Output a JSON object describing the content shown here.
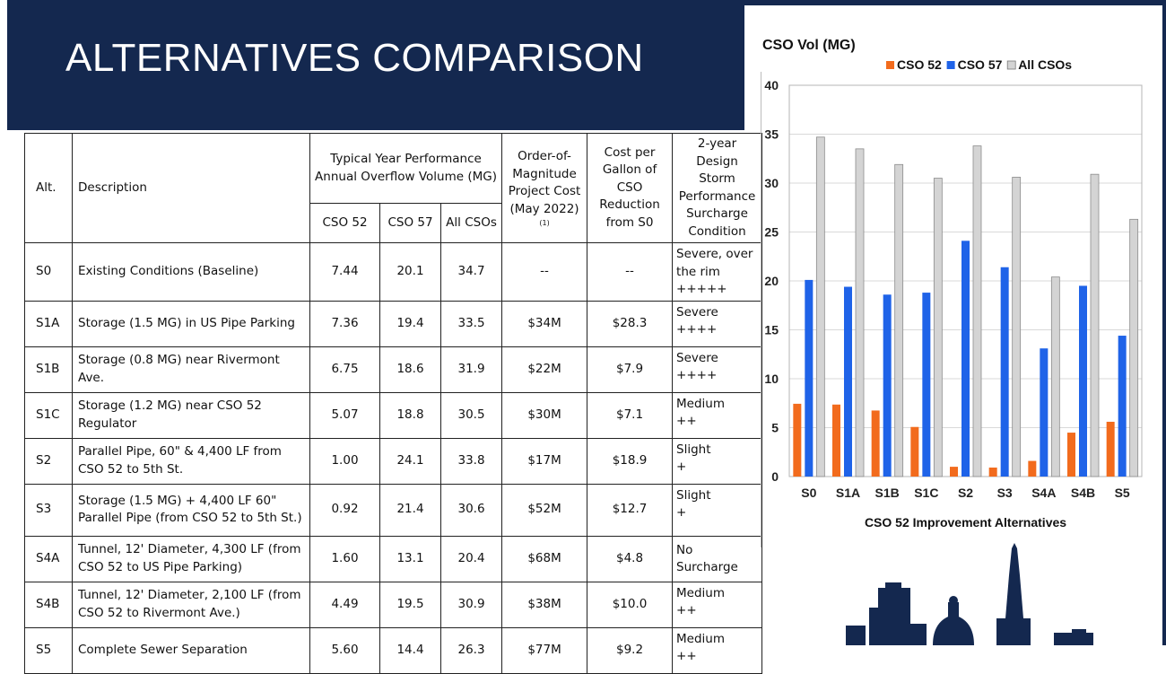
{
  "slide": {
    "title": "ALTERNATIVES COMPARISON"
  },
  "table": {
    "headers": {
      "alt": "Alt.",
      "description": "Description",
      "typical_year": "Typical Year Performance Annual Overflow Volume (MG)",
      "cso52": "CSO 52",
      "cso57": "CSO 57",
      "all_csos": "All CSOs",
      "cost": "Order-of-Magnitude Project Cost (May 2022)",
      "cost_note": "(1)",
      "cost_per_gallon": "Cost per Gallon of CSO Reduction from S0",
      "storm": "2-year Design Storm Performance Surcharge Condition"
    },
    "rows": [
      {
        "alt": "S0",
        "description": "Existing Conditions (Baseline)",
        "cso52": "7.44",
        "cso57": "20.1",
        "all": "34.7",
        "cost": "--",
        "cpg": "--",
        "storm": "Severe, over the rim",
        "storm_marks": "+++++"
      },
      {
        "alt": "S1A",
        "description": "Storage (1.5 MG) in US Pipe Parking",
        "cso52": "7.36",
        "cso57": "19.4",
        "all": "33.5",
        "cost": "$34M",
        "cpg": "$28.3",
        "storm": "Severe",
        "storm_marks": "++++"
      },
      {
        "alt": "S1B",
        "description": "Storage (0.8 MG) near Rivermont Ave.",
        "cso52": "6.75",
        "cso57": "18.6",
        "all": "31.9",
        "cost": "$22M",
        "cpg": "$7.9",
        "storm": "Severe",
        "storm_marks": "++++"
      },
      {
        "alt": "S1C",
        "description": "Storage (1.2 MG) near CSO 52 Regulator",
        "cso52": "5.07",
        "cso57": "18.8",
        "all": "30.5",
        "cost": "$30M",
        "cpg": "$7.1",
        "storm": "Medium",
        "storm_marks": "++"
      },
      {
        "alt": "S2",
        "description": "Parallel Pipe, 60\" & 4,400 LF from CSO 52 to 5th St.",
        "cso52": "1.00",
        "cso57": "24.1",
        "all": "33.8",
        "cost": "$17M",
        "cpg": "$18.9",
        "storm": "Slight",
        "storm_marks": "+"
      },
      {
        "alt": "S3",
        "description": "Storage (1.5 MG) + 4,400 LF 60\" Parallel Pipe (from CSO 52 to 5th St.)",
        "cso52": "0.92",
        "cso57": "21.4",
        "all": "30.6",
        "cost": "$52M",
        "cpg": "$12.7",
        "storm": "Slight",
        "storm_marks": "+"
      },
      {
        "alt": "S4A",
        "description": "Tunnel, 12' Diameter, 4,300 LF (from CSO 52 to US Pipe Parking)",
        "cso52": "1.60",
        "cso57": "13.1",
        "all": "20.4",
        "cost": "$68M",
        "cpg": "$4.8",
        "storm": "No Surcharge",
        "storm_marks": ""
      },
      {
        "alt": "S4B",
        "description": "Tunnel, 12' Diameter, 2,100 LF (from CSO 52 to Rivermont Ave.)",
        "cso52": "4.49",
        "cso57": "19.5",
        "all": "30.9",
        "cost": "$38M",
        "cpg": "$10.0",
        "storm": "Medium",
        "storm_marks": "++"
      },
      {
        "alt": "S5",
        "description": "Complete Sewer Separation",
        "cso52": "5.60",
        "cso57": "14.4",
        "all": "26.3",
        "cost": "$77M",
        "cpg": "$9.2",
        "storm": "Medium",
        "storm_marks": "++"
      }
    ]
  },
  "chart_data": {
    "type": "bar",
    "title": "CSO Vol (MG)",
    "xlabel": "CSO 52 Improvement Alternatives",
    "ylabel": "",
    "ylim": [
      0,
      40
    ],
    "yticks": [
      0,
      5,
      10,
      15,
      20,
      25,
      30,
      35,
      40
    ],
    "grid": true,
    "legend": "top",
    "categories": [
      "S0",
      "S1A",
      "S1B",
      "S1C",
      "S2",
      "S3",
      "S4A",
      "S4B",
      "S5"
    ],
    "series": [
      {
        "name": "CSO 52",
        "color": "#f26b1d",
        "values": [
          7.44,
          7.36,
          6.75,
          5.07,
          1.0,
          0.92,
          1.6,
          4.49,
          5.6
        ]
      },
      {
        "name": "CSO 57",
        "color": "#1f63e8",
        "values": [
          20.1,
          19.4,
          18.6,
          18.8,
          24.1,
          21.4,
          13.1,
          19.5,
          14.4
        ]
      },
      {
        "name": "All CSOs",
        "color": "#d4d4d4",
        "values": [
          34.7,
          33.5,
          31.9,
          30.5,
          33.8,
          30.6,
          20.4,
          30.9,
          26.3
        ]
      }
    ]
  }
}
